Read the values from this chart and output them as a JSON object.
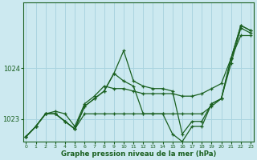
{
  "title": "Graphe pression niveau de la mer (hPa)",
  "background_color": "#cce9f0",
  "grid_color": "#aad4e0",
  "line_color": "#1a6020",
  "x_ticks": [
    0,
    1,
    2,
    3,
    4,
    5,
    6,
    7,
    8,
    9,
    10,
    11,
    12,
    13,
    14,
    15,
    16,
    17,
    18,
    19,
    20,
    21,
    22,
    23
  ],
  "y_ticks": [
    1023,
    1024
  ],
  "ylim": [
    1022.55,
    1025.3
  ],
  "xlim": [
    -0.3,
    23.3
  ],
  "series": [
    {
      "name": "s1_jagged",
      "y": [
        1022.65,
        1022.85,
        1023.1,
        1023.1,
        1022.95,
        1022.8,
        1023.25,
        1023.4,
        1023.55,
        1023.9,
        1024.35,
        1023.75,
        1023.65,
        1023.6,
        1023.6,
        1023.55,
        1022.7,
        1022.95,
        1022.95,
        1023.3,
        1023.4,
        1024.2,
        1024.85,
        1024.75
      ]
    },
    {
      "name": "s2_nearly_flat",
      "y": [
        1022.65,
        1022.85,
        1023.1,
        1023.1,
        1022.95,
        1022.8,
        1023.1,
        1023.1,
        1023.1,
        1023.1,
        1023.1,
        1023.1,
        1023.1,
        1023.1,
        1023.1,
        1023.1,
        1023.1,
        1023.1,
        1023.1,
        1023.25,
        1023.4,
        1024.1,
        1024.8,
        1024.7
      ]
    },
    {
      "name": "s3_diagonal",
      "y": [
        1022.65,
        1022.85,
        1023.1,
        1023.15,
        1023.1,
        1022.85,
        1023.3,
        1023.45,
        1023.65,
        1023.6,
        1023.6,
        1023.55,
        1023.5,
        1023.5,
        1023.5,
        1023.5,
        1023.45,
        1023.45,
        1023.5,
        1023.6,
        1023.7,
        1024.2,
        1024.65,
        1024.65
      ]
    },
    {
      "name": "s4_dip",
      "y": [
        1022.65,
        1022.85,
        1023.1,
        1023.1,
        1022.95,
        1022.8,
        1023.25,
        1023.4,
        1023.55,
        1023.9,
        1023.75,
        1023.65,
        1023.1,
        1023.1,
        1023.1,
        1022.7,
        1022.55,
        1022.85,
        1022.85,
        1023.3,
        1023.4,
        1024.2,
        1024.85,
        1024.75
      ]
    }
  ]
}
